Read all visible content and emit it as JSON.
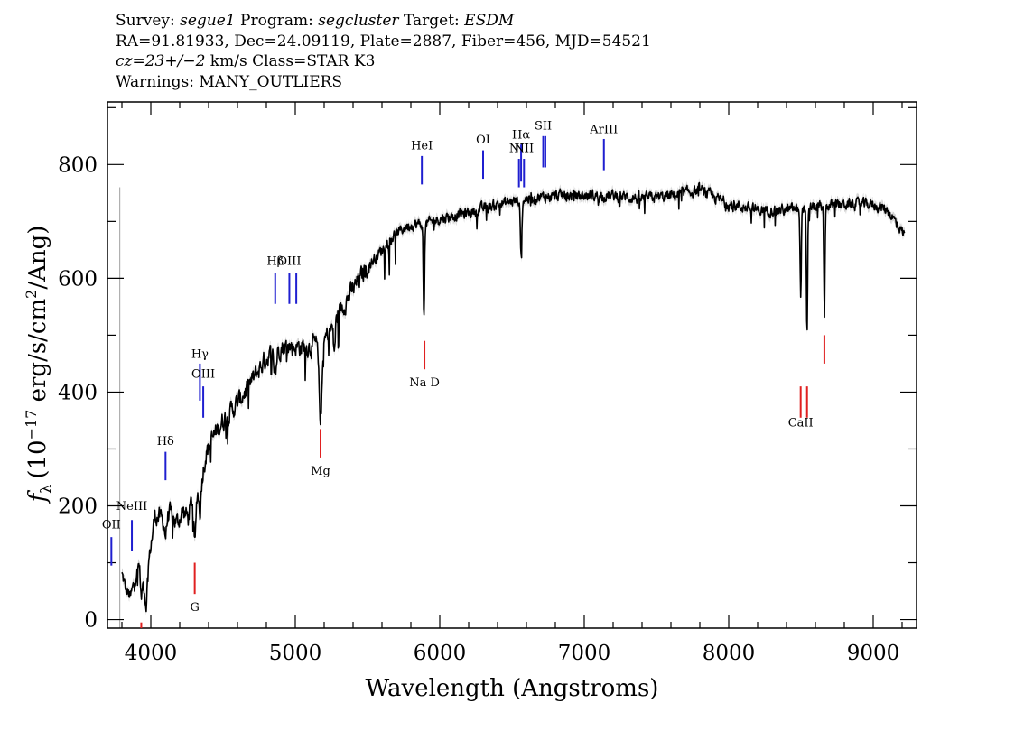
{
  "header": {
    "line1": {
      "survey_label": "Survey:",
      "survey": "segue1",
      "program_label": "Program:",
      "program": "segcluster",
      "target_label": "Target:",
      "target": "ESDM"
    },
    "line2": "RA=91.81933, Dec=24.09119, Plate=2887, Fiber=456, MJD=54521",
    "line3": {
      "cz": "cz=23+/−2",
      "rest": " km/s Class=STAR K3"
    },
    "line4": "Warnings: MANY_OUTLIERS"
  },
  "chart_data": {
    "type": "line",
    "xlabel": "Wavelength (Angstroms)",
    "ylabel_parts": {
      "f": "f",
      "sub": "λ",
      "pre": "(10",
      "exp1": "−17",
      "mid": " erg/s/cm",
      "exp2": "2",
      "post": "/Ang)"
    },
    "xlim": [
      3700,
      9300
    ],
    "ylim": [
      -15,
      910
    ],
    "x_ticks": [
      4000,
      5000,
      6000,
      7000,
      8000,
      9000
    ],
    "x_tick_labels": [
      "4000",
      "5000",
      "6000",
      "7000",
      "8000",
      "9000"
    ],
    "y_ticks": [
      0,
      200,
      400,
      600,
      800
    ],
    "y_tick_labels": [
      "0",
      "200",
      "400",
      "600",
      "800"
    ],
    "colors": {
      "spectrum": "#000000",
      "error_band": "#b0b0b0",
      "emission": "#1f1fd0",
      "absorption": "#e02020"
    },
    "continuum": [
      [
        3800,
        80
      ],
      [
        3830,
        50
      ],
      [
        3860,
        40
      ],
      [
        3890,
        70
      ],
      [
        3920,
        100
      ],
      [
        3960,
        50
      ],
      [
        3990,
        110
      ],
      [
        4030,
        185
      ],
      [
        4080,
        175
      ],
      [
        4130,
        185
      ],
      [
        4180,
        170
      ],
      [
        4220,
        190
      ],
      [
        4260,
        180
      ],
      [
        4300,
        225
      ],
      [
        4340,
        230
      ],
      [
        4380,
        290
      ],
      [
        4430,
        320
      ],
      [
        4500,
        350
      ],
      [
        4600,
        380
      ],
      [
        4700,
        420
      ],
      [
        4800,
        460
      ],
      [
        4900,
        480
      ],
      [
        5000,
        480
      ],
      [
        5100,
        480
      ],
      [
        5200,
        490
      ],
      [
        5300,
        540
      ],
      [
        5400,
        580
      ],
      [
        5500,
        620
      ],
      [
        5600,
        650
      ],
      [
        5700,
        680
      ],
      [
        5800,
        695
      ],
      [
        5900,
        695
      ],
      [
        6000,
        705
      ],
      [
        6200,
        715
      ],
      [
        6400,
        730
      ],
      [
        6600,
        740
      ],
      [
        6800,
        745
      ],
      [
        7000,
        745
      ],
      [
        7200,
        745
      ],
      [
        7400,
        740
      ],
      [
        7600,
        745
      ],
      [
        7800,
        755
      ],
      [
        8000,
        730
      ],
      [
        8200,
        720
      ],
      [
        8400,
        720
      ],
      [
        8600,
        725
      ],
      [
        8800,
        730
      ],
      [
        9000,
        730
      ],
      [
        9100,
        720
      ],
      [
        9220,
        675
      ]
    ],
    "absorption_dips": [
      {
        "x": 3934,
        "depth": 45,
        "width": 8
      },
      {
        "x": 3969,
        "depth": 40,
        "width": 8
      },
      {
        "x": 4102,
        "depth": 30,
        "width": 10
      },
      {
        "x": 4305,
        "depth": 95,
        "width": 10
      },
      {
        "x": 4340,
        "depth": 40,
        "width": 10
      },
      {
        "x": 4861,
        "depth": 40,
        "width": 12
      },
      {
        "x": 5175,
        "depth": 130,
        "width": 15
      },
      {
        "x": 5270,
        "depth": 50,
        "width": 10
      },
      {
        "x": 5890,
        "depth": 170,
        "width": 6
      },
      {
        "x": 6563,
        "depth": 90,
        "width": 8
      },
      {
        "x": 8498,
        "depth": 150,
        "width": 6
      },
      {
        "x": 8542,
        "depth": 230,
        "width": 6
      },
      {
        "x": 8662,
        "depth": 180,
        "width": 6
      }
    ],
    "lines": [
      {
        "label": "OII",
        "x": 3727,
        "type": "emission",
        "y0": 95,
        "y1": 145,
        "label_y": 160
      },
      {
        "label": "NeIII",
        "x": 3869,
        "type": "emission",
        "y0": 120,
        "y1": 175,
        "label_y": 193
      },
      {
        "label": "Hδ",
        "x": 4102,
        "type": "emission",
        "y0": 245,
        "y1": 295,
        "label_y": 307
      },
      {
        "label": "Hγ",
        "x": 4340,
        "type": "emission",
        "y0": 385,
        "y1": 450,
        "label_y": 460
      },
      {
        "label": "OIII",
        "x": 4363,
        "type": "emission",
        "y0": 355,
        "y1": 410,
        "label_y": 425
      },
      {
        "label": "Hβ",
        "x": 4861,
        "type": "emission",
        "y0": 555,
        "y1": 610,
        "label_y": 624
      },
      {
        "label": "OIII",
        "x": 4959,
        "type": "emission",
        "y0": 555,
        "y1": 610,
        "label_y": 624
      },
      {
        "label": "",
        "x": 5007,
        "type": "emission",
        "y0": 555,
        "y1": 610,
        "label_y": 0
      },
      {
        "label": "HeI",
        "x": 5876,
        "type": "emission",
        "y0": 765,
        "y1": 815,
        "label_y": 827
      },
      {
        "label": "OI",
        "x": 6300,
        "type": "emission",
        "y0": 775,
        "y1": 825,
        "label_y": 837
      },
      {
        "label": "NII",
        "x": 6548,
        "type": "emission",
        "y0": 760,
        "y1": 810,
        "label_y": 822
      },
      {
        "label": "Hα",
        "x": 6563,
        "type": "emission",
        "y0": 770,
        "y1": 835,
        "label_y": 846
      },
      {
        "label": "NII",
        "x": 6583,
        "type": "emission",
        "y0": 760,
        "y1": 810,
        "label_y": 822
      },
      {
        "label": "SII",
        "x": 6716,
        "type": "emission",
        "y0": 795,
        "y1": 850,
        "label_y": 862
      },
      {
        "label": "",
        "x": 6731,
        "type": "emission",
        "y0": 795,
        "y1": 850,
        "label_y": 0
      },
      {
        "label": "ArIII",
        "x": 7136,
        "type": "emission",
        "y0": 790,
        "y1": 845,
        "label_y": 855
      },
      {
        "label": "G",
        "x": 4304,
        "type": "absorption",
        "y0": 45,
        "y1": 100,
        "label_y": 15
      },
      {
        "label": "Mg",
        "x": 5175,
        "type": "absorption",
        "y0": 285,
        "y1": 335,
        "label_y": 255
      },
      {
        "label": "Na D",
        "x": 5894,
        "type": "absorption",
        "y0": 440,
        "y1": 490,
        "label_y": 410
      },
      {
        "label": "CaII",
        "x": 8498,
        "type": "absorption",
        "y0": 355,
        "y1": 410,
        "label_y": 340
      },
      {
        "label": "",
        "x": 8542,
        "type": "absorption",
        "y0": 355,
        "y1": 410,
        "label_y": 0
      },
      {
        "label": "",
        "x": 8662,
        "type": "absorption",
        "y0": 450,
        "y1": 500,
        "label_y": 0
      },
      {
        "label": "",
        "x": 3934,
        "type": "absorption",
        "y0": -15,
        "y1": -5,
        "label_y": 0
      }
    ]
  }
}
